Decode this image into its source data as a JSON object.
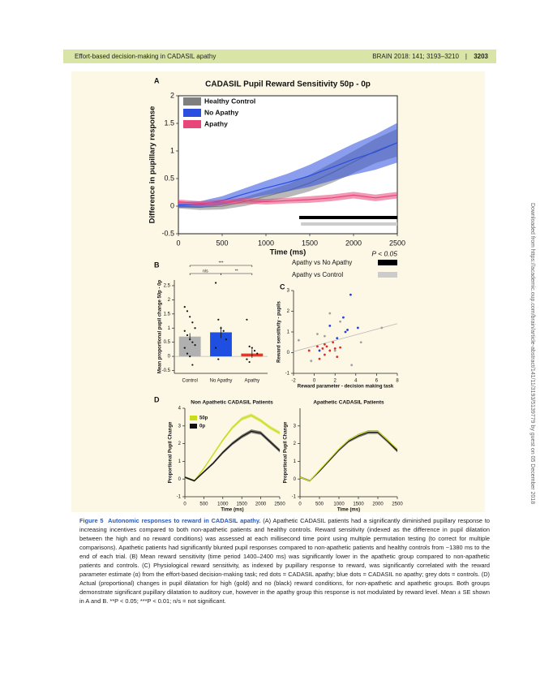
{
  "header": {
    "left": "Effort-based decision-making in CADASIL apathy",
    "journal": "BRAIN 2018: 141; 3193–3210",
    "page": "3203"
  },
  "chart_data": [
    {
      "type": "line",
      "panel": "A",
      "title": "CADASIL Pupil Reward Sensitivity 50p - 0p",
      "xlabel": "Time (ms)",
      "ylabel": "Difference in pupillary response",
      "xlim": [
        0,
        2500
      ],
      "xticks": [
        0,
        500,
        1000,
        1500,
        2000,
        2500
      ],
      "ylim": [
        -0.5,
        2
      ],
      "yticks": [
        -0.5,
        0,
        0.5,
        1,
        1.5,
        2
      ],
      "x": [
        0,
        250,
        500,
        750,
        1000,
        1250,
        1500,
        1750,
        2000,
        2250,
        2500
      ],
      "series": [
        {
          "name": "Healthy Control",
          "color": "#7f7f7f",
          "values": [
            0,
            -0.02,
            0,
            0.08,
            0.18,
            0.28,
            0.42,
            0.6,
            0.8,
            1.0,
            1.15
          ],
          "errors": [
            0.04,
            0.05,
            0.06,
            0.08,
            0.1,
            0.12,
            0.15,
            0.18,
            0.2,
            0.22,
            0.25
          ]
        },
        {
          "name": "No Apathy",
          "color": "#2b4ee0",
          "values": [
            0.02,
            0.03,
            0.1,
            0.22,
            0.33,
            0.43,
            0.55,
            0.7,
            0.85,
            0.98,
            1.15
          ],
          "errors": [
            0.05,
            0.06,
            0.08,
            0.1,
            0.13,
            0.16,
            0.2,
            0.24,
            0.28,
            0.32,
            0.36
          ]
        },
        {
          "name": "Apathy",
          "color": "#e8457a",
          "values": [
            0.08,
            0.05,
            0.07,
            0.1,
            0.08,
            0.1,
            0.12,
            0.15,
            0.2,
            0.15,
            0.2
          ],
          "errors": [
            0.04,
            0.04,
            0.05,
            0.05,
            0.05,
            0.05,
            0.06,
            0.06,
            0.06,
            0.06,
            0.06
          ]
        }
      ],
      "significance": {
        "label": "P < 0.05",
        "bars": [
          {
            "name": "Apathy vs No Apathy",
            "color": "#000000",
            "x": [
              1380,
              2500
            ]
          },
          {
            "name": "Apathy vs Control",
            "color": "#cccccc",
            "x": [
              1400,
              2500
            ]
          }
        ]
      }
    },
    {
      "type": "bar",
      "panel": "B",
      "ylabel": "Mean proportional pupil change 50p - 0p",
      "categories": [
        "Control",
        "No Apathy",
        "Apathy"
      ],
      "values": [
        0.7,
        0.85,
        0.1
      ],
      "errors": [
        0.12,
        0.2,
        0.15
      ],
      "colors": [
        "#b0b0b0",
        "#1f4fe0",
        "#e03a2a"
      ],
      "points": [
        [
          1.75,
          1.6,
          1.4,
          1.2,
          1.0,
          0.9,
          0.75,
          0.6,
          0.5,
          0.4,
          0.3,
          0.1,
          0,
          -0.3
        ],
        [
          2.6,
          1.3,
          1.0,
          0.9,
          0.6,
          0.3,
          -0.1
        ],
        [
          1.3,
          0.35,
          0.3,
          0.2,
          0.1,
          -0.1,
          -0.2
        ]
      ],
      "ylim": [
        -0.6,
        2.7
      ],
      "yticks": [
        -0.5,
        0,
        0.5,
        1,
        1.5,
        2,
        2.5
      ],
      "brackets": [
        "n/s",
        "**",
        "***"
      ]
    },
    {
      "type": "scatter",
      "panel": "C",
      "xlabel": "Reward parameter - decision making task",
      "ylabel": "Reward sensitivity - pupils",
      "xlim": [
        -2,
        8
      ],
      "xticks": [
        -2,
        0,
        2,
        4,
        6,
        8
      ],
      "ylim": [
        -1,
        3
      ],
      "yticks": [
        -1,
        0,
        1,
        2,
        3
      ],
      "series": [
        {
          "color": "#e02a2a",
          "x": [
            -0.5,
            0.5,
            0.8,
            1,
            1.2,
            1.5,
            1.8,
            2.0,
            2.2,
            1.0,
            0.3,
            2.5
          ],
          "values": [
            0.1,
            -0.3,
            0.2,
            -0.1,
            0.3,
            0.1,
            0.5,
            0.2,
            -0.2,
            0.4,
            0.3,
            0.25
          ]
        },
        {
          "color": "#2040e0",
          "x": [
            3.5,
            2.8,
            3.2,
            4.2,
            1.5,
            2.2,
            0.5,
            3.0
          ],
          "values": [
            2.8,
            1.7,
            1.1,
            1.2,
            1.3,
            0.7,
            0.1,
            1.0
          ]
        },
        {
          "color": "#a0a0a0",
          "x": [
            -1.5,
            0.3,
            1.5,
            2.5,
            3.6,
            6.5,
            2.0,
            4.5,
            1.0,
            -0.3
          ],
          "values": [
            0.6,
            0.9,
            1.9,
            1.5,
            -0.6,
            1.2,
            0.1,
            0.5,
            0.8,
            -0.4
          ]
        }
      ],
      "trend": {
        "color": "#b5b5b5",
        "x": [
          -2,
          8
        ],
        "values": [
          0.05,
          1.4
        ]
      }
    },
    {
      "type": "line",
      "panel": "D",
      "title": "Non Apathetic CADASIL Patients",
      "xlabel": "Time (ms)",
      "ylabel": "Proportional Pupil Change",
      "xlim": [
        0,
        2500
      ],
      "xticks": [
        0,
        500,
        1000,
        1500,
        2000,
        2500
      ],
      "ylim": [
        -1,
        4
      ],
      "yticks": [
        -1,
        0,
        1,
        2,
        3,
        4
      ],
      "x": [
        0,
        250,
        500,
        750,
        1000,
        1250,
        1500,
        1750,
        2000,
        2250,
        2500
      ],
      "series": [
        {
          "name": "50p",
          "color": "#c8dc1a",
          "values": [
            0.1,
            -0.1,
            0.6,
            1.4,
            2.2,
            2.9,
            3.4,
            3.6,
            3.3,
            2.9,
            2.6
          ],
          "errors": [
            0.05,
            0.05,
            0.06,
            0.07,
            0.08,
            0.09,
            0.1,
            0.1,
            0.1,
            0.1,
            0.1
          ]
        },
        {
          "name": "0p",
          "color": "#111111",
          "values": [
            0.1,
            -0.1,
            0.4,
            0.9,
            1.5,
            2.0,
            2.4,
            2.7,
            2.6,
            2.1,
            1.6
          ],
          "errors": [
            0.05,
            0.05,
            0.06,
            0.07,
            0.08,
            0.09,
            0.1,
            0.1,
            0.1,
            0.1,
            0.1
          ]
        }
      ]
    },
    {
      "type": "line",
      "title": "Apathetic CADASIL Patients",
      "xlabel": "Time (ms)",
      "ylabel": "Proportional Pupil Change",
      "xlim": [
        0,
        2500
      ],
      "xticks": [
        0,
        500,
        1000,
        1500,
        2000,
        2500
      ],
      "ylim": [
        -1,
        4
      ],
      "yticks": [
        -1,
        0,
        1,
        2,
        3
      ],
      "x": [
        0,
        250,
        500,
        750,
        1000,
        1250,
        1500,
        1750,
        2000,
        2250,
        2500
      ],
      "series": [
        {
          "color": "#111111",
          "values": [
            0.1,
            -0.1,
            0.45,
            1.05,
            1.65,
            2.15,
            2.45,
            2.65,
            2.65,
            2.15,
            1.6
          ],
          "errors": [
            0.05,
            0.05,
            0.06,
            0.07,
            0.08,
            0.09,
            0.1,
            0.1,
            0.1,
            0.1,
            0.1
          ]
        },
        {
          "color": "#c8dc1a",
          "values": [
            0.1,
            -0.1,
            0.5,
            1.1,
            1.7,
            2.2,
            2.5,
            2.7,
            2.7,
            2.2,
            1.7
          ],
          "errors": [
            0.03,
            0.03,
            0.03,
            0.03,
            0.03,
            0.03,
            0.03,
            0.03,
            0.03,
            0.03,
            0.03
          ]
        }
      ]
    }
  ],
  "caption": {
    "label": "Figure 5",
    "title": "Autonomic responses to reward in CADASIL apathy.",
    "text": "(A) Apathetic CADASIL patients had a significantly diminished pupillary response to increasing incentives compared to both non-apathetic patients and healthy controls. Reward sensitivity (indexed as the difference in pupil dilatation between the high and no reward conditions) was assessed at each millisecond time point using multiple permutation testing (to correct for multiple comparisons). Apathetic patients had significantly blunted pupil responses compared to non-apathetic patients and healthy controls from ~1380 ms to the end of each trial. (B) Mean reward sensitivity (time period 1400–2400 ms) was significantly lower in the apathetic group compared to non-apathetic patients and controls. (C) Physiological reward sensitivity, as indexed by pupillary response to reward, was significantly correlated with the reward parameter estimate (α) from the effort-based decision-making task; red dots = CADASIL apathy; blue dots = CADASIL no apathy; grey dots = controls. (D) Actual (proportional) changes in pupil dilatation for high (gold) and no (black) reward conditions, for non-apathetic and apathetic groups. Both groups demonstrate significant pupillary dilatation to auditory cue, however in the apathy group this response is not modulated by reward level. Mean ± SE shown in A and B. **P < 0.05; ***P < 0.01; n/s = not significant."
  },
  "side_note": "Downloaded from https://academic.oup.com/brain/article-abstract/141/11/3193/5139779 by guest on 05 December 2018"
}
